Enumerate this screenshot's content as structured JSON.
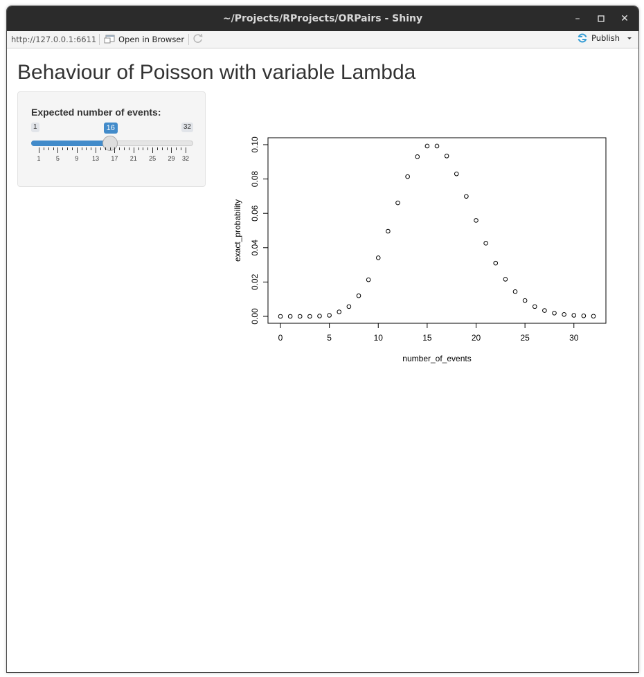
{
  "window": {
    "title": "~/Projects/RProjects/ORPairs - Shiny"
  },
  "toolbar": {
    "url": "http://127.0.0.1:6611",
    "open_in_browser": "Open in Browser",
    "publish": "Publish"
  },
  "page": {
    "title": "Behaviour of Poisson with variable Lambda"
  },
  "slider": {
    "label": "Expected number of events:",
    "min": 1,
    "max": 32,
    "value": 16,
    "min_label": "1",
    "max_label": "32",
    "value_label": "16",
    "tick_labels": [
      "1",
      "5",
      "9",
      "13",
      "17",
      "21",
      "25",
      "29",
      "32"
    ],
    "accent_color": "#428bca"
  },
  "chart_data": {
    "type": "scatter",
    "xlabel": "number_of_events",
    "ylabel": "exact_probability",
    "xlim": [
      0,
      32
    ],
    "ylim": [
      0,
      0.1
    ],
    "x_ticks": [
      "0",
      "5",
      "10",
      "15",
      "20",
      "25",
      "30"
    ],
    "y_ticks": [
      "0.00",
      "0.02",
      "0.04",
      "0.06",
      "0.08",
      "0.10"
    ],
    "grid": false,
    "marker": "open-circle",
    "x": [
      0,
      1,
      2,
      3,
      4,
      5,
      6,
      7,
      8,
      9,
      10,
      11,
      12,
      13,
      14,
      15,
      16,
      17,
      18,
      19,
      20,
      21,
      22,
      23,
      24,
      25,
      26,
      27,
      28,
      29,
      30,
      31,
      32
    ],
    "y": [
      0.0,
      0.0,
      0.0,
      0.0,
      0.0002,
      0.0006,
      0.0026,
      0.0057,
      0.012,
      0.0213,
      0.0341,
      0.0496,
      0.0661,
      0.0814,
      0.093,
      0.0992,
      0.0992,
      0.0934,
      0.083,
      0.0699,
      0.0559,
      0.0426,
      0.031,
      0.0216,
      0.0144,
      0.0092,
      0.0057,
      0.0034,
      0.0019,
      0.0011,
      0.0006,
      0.0003,
      0.0001
    ]
  }
}
